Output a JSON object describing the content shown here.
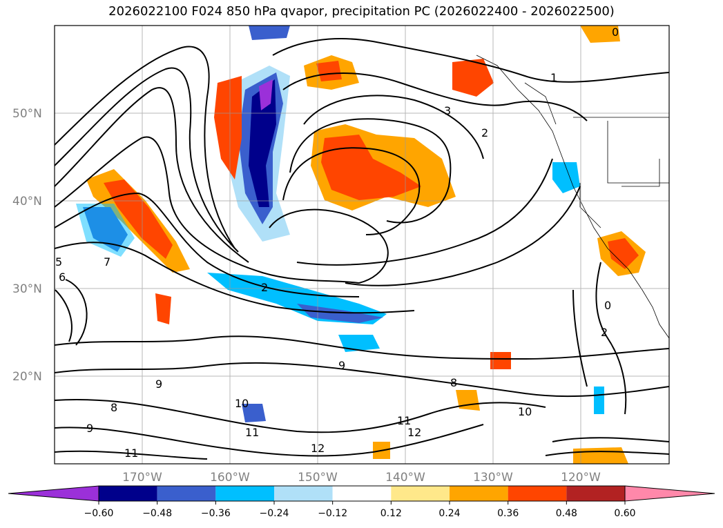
{
  "chart_data": {
    "type": "map-contour",
    "title": "2026022100 F024 850 hPa qvapor, precipitation PC (2026022400 - 2026022500)",
    "lat_ticks": [
      "50°N",
      "40°N",
      "30°N",
      "20°N"
    ],
    "lon_ticks": [
      "170°W",
      "160°W",
      "150°W",
      "140°W",
      "130°W",
      "120°W"
    ],
    "colorbar": {
      "levels": [
        "−0.60",
        "−0.48",
        "−0.36",
        "−0.24",
        "−0.12",
        "0.12",
        "0.24",
        "0.36",
        "0.48",
        "0.60"
      ],
      "colors": [
        "#9b30d9",
        "#00008b",
        "#3a5fcd",
        "#00bfff",
        "#b0e0f8",
        "#ffffff",
        "#ffe88a",
        "#ffa500",
        "#ff4500",
        "#b22222",
        "#ff88aa"
      ],
      "extend": "both"
    },
    "contour_labels": [
      "1",
      "2",
      "3",
      "0",
      "5",
      "6",
      "7",
      "8",
      "9",
      "10",
      "11",
      "12"
    ],
    "contour_label_set": [
      "9",
      "10",
      "11",
      "12",
      "11",
      "12",
      "10",
      "9",
      "8",
      "7",
      "6",
      "5",
      "2",
      "3",
      "1",
      "0",
      "2",
      "0",
      "2",
      "9",
      "8",
      "11"
    ]
  }
}
